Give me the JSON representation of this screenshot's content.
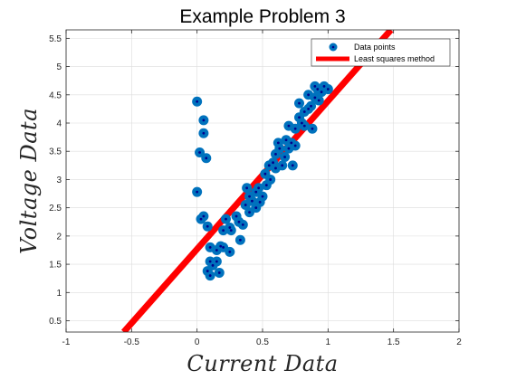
{
  "chart_data": {
    "type": "scatter",
    "title": "Example Problem 3",
    "xlabel": "Current Data",
    "ylabel": "Voltage Data",
    "xlim": [
      -1,
      2
    ],
    "ylim": [
      0.3,
      5.65
    ],
    "xticks": [
      -1,
      -0.5,
      0,
      0.5,
      1,
      1.5,
      2
    ],
    "xtick_labels": [
      "-1",
      "-0.5",
      "0",
      "0.5",
      "1",
      "1.5",
      "2"
    ],
    "yticks": [
      0.5,
      1,
      1.5,
      2,
      2.5,
      3,
      3.5,
      4,
      4.5,
      5,
      5.5
    ],
    "ytick_labels": [
      "0.5",
      "1",
      "1.5",
      "2",
      "2.5",
      "3",
      "3.5",
      "4",
      "4.5",
      "5",
      "5.5"
    ],
    "grid": true,
    "legend_position": "top-right",
    "series": [
      {
        "name": "Data points",
        "kind": "scatter",
        "color": "#0072BD",
        "center_color": "#00008B",
        "points": [
          [
            0.0,
            4.38
          ],
          [
            0.05,
            4.05
          ],
          [
            0.05,
            3.82
          ],
          [
            0.02,
            3.48
          ],
          [
            0.07,
            3.38
          ],
          [
            0.0,
            2.78
          ],
          [
            0.03,
            2.3
          ],
          [
            0.05,
            2.35
          ],
          [
            0.08,
            2.17
          ],
          [
            0.1,
            1.8
          ],
          [
            0.1,
            1.55
          ],
          [
            0.12,
            1.48
          ],
          [
            0.08,
            1.38
          ],
          [
            0.1,
            1.3
          ],
          [
            0.15,
            1.55
          ],
          [
            0.17,
            1.35
          ],
          [
            0.15,
            1.75
          ],
          [
            0.2,
            1.8
          ],
          [
            0.2,
            2.1
          ],
          [
            0.22,
            2.3
          ],
          [
            0.18,
            1.82
          ],
          [
            0.25,
            2.15
          ],
          [
            0.25,
            1.72
          ],
          [
            0.26,
            2.1
          ],
          [
            0.3,
            2.35
          ],
          [
            0.32,
            2.25
          ],
          [
            0.33,
            1.93
          ],
          [
            0.35,
            2.2
          ],
          [
            0.37,
            2.55
          ],
          [
            0.38,
            2.85
          ],
          [
            0.4,
            2.42
          ],
          [
            0.4,
            2.7
          ],
          [
            0.42,
            2.62
          ],
          [
            0.45,
            2.5
          ],
          [
            0.45,
            2.78
          ],
          [
            0.47,
            2.85
          ],
          [
            0.48,
            2.6
          ],
          [
            0.5,
            2.7
          ],
          [
            0.52,
            3.1
          ],
          [
            0.53,
            2.9
          ],
          [
            0.55,
            3.25
          ],
          [
            0.56,
            3.0
          ],
          [
            0.58,
            3.3
          ],
          [
            0.6,
            3.2
          ],
          [
            0.6,
            3.45
          ],
          [
            0.62,
            3.65
          ],
          [
            0.63,
            3.55
          ],
          [
            0.65,
            3.25
          ],
          [
            0.67,
            3.4
          ],
          [
            0.68,
            3.7
          ],
          [
            0.7,
            3.95
          ],
          [
            0.7,
            3.55
          ],
          [
            0.72,
            3.65
          ],
          [
            0.73,
            3.25
          ],
          [
            0.75,
            3.6
          ],
          [
            0.75,
            3.9
          ],
          [
            0.78,
            4.1
          ],
          [
            0.78,
            4.35
          ],
          [
            0.8,
            4.0
          ],
          [
            0.82,
            4.2
          ],
          [
            0.82,
            3.95
          ],
          [
            0.85,
            4.5
          ],
          [
            0.85,
            4.25
          ],
          [
            0.87,
            4.3
          ],
          [
            0.88,
            3.9
          ],
          [
            0.9,
            4.45
          ],
          [
            0.9,
            4.65
          ],
          [
            0.92,
            4.6
          ],
          [
            0.93,
            4.4
          ],
          [
            0.95,
            4.55
          ],
          [
            0.97,
            4.65
          ],
          [
            1.0,
            4.6
          ]
        ]
      },
      {
        "name": "Least squares method",
        "kind": "line",
        "color": "#FF0000",
        "line": [
          [
            -0.56,
            0.3
          ],
          [
            1.48,
            5.65
          ]
        ]
      }
    ]
  }
}
